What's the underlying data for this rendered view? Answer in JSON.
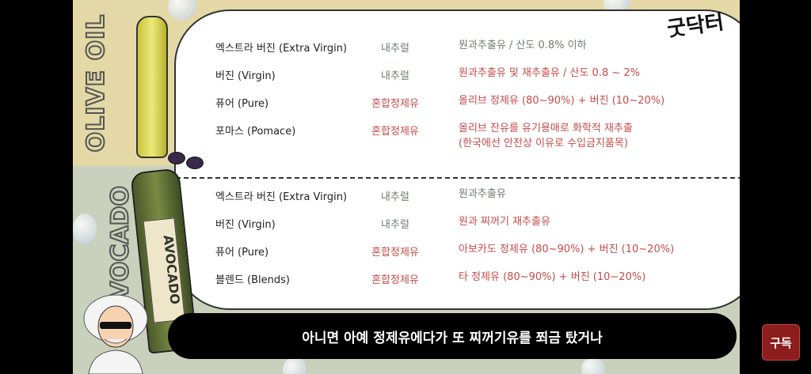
{
  "logo": "굿닥터",
  "side_titles": {
    "olive": "OLIVE OIL",
    "avocado": "AVOCADO"
  },
  "bottle_label": "AVOCADO",
  "olive_rows": [
    {
      "grade": "엑스트라 버진 (Extra Virgin)",
      "type": "내추럴",
      "desc": "원과추출유 / 산도 0.8% 이하",
      "desc2": ""
    },
    {
      "grade": "버진 (Virgin)",
      "type": "내추럴",
      "desc": "원과추출유 및 재추출유 / 산도 0.8 ~ 2%",
      "desc2": ""
    },
    {
      "grade": "퓨어 (Pure)",
      "type": "혼합정제유",
      "desc": "올리브 정제유 (80~90%) + 버진 (10~20%)",
      "desc2": ""
    },
    {
      "grade": "포마스 (Pomace)",
      "type": "혼합정제유",
      "desc": "올리브 잔유를 유기용매로 화학적 재추출",
      "desc2": "(한국에선 안전상 이유로 수입금지품목)"
    }
  ],
  "avocado_rows": [
    {
      "grade": "엑스트라 버진 (Extra Virgin)",
      "type": "내추럴",
      "desc": "원과추출유"
    },
    {
      "grade": "버진 (Virgin)",
      "type": "내추럴",
      "desc": "원과 찌꺼기 재추출유"
    },
    {
      "grade": "퓨어 (Pure)",
      "type": "혼합정제유",
      "desc": "아보카도 정제유 (80~90%) + 버진 (10~20%)"
    },
    {
      "grade": "블렌드 (Blends)",
      "type": "혼합정제유",
      "desc": "타 정제유 (80~90%) + 버진 (10~20%)"
    }
  ],
  "subtitle": "아니면 아예 정제유에다가 또 찌꺼기유를 쬐금 탔거나",
  "subscribe_label": "구독",
  "colors": {
    "top_bg": "#e4d9a6",
    "bottom_bg": "#c9d1bd",
    "natural": "#6f7a70",
    "refined": "#c84a4a",
    "subscribe": "#8c1d1d"
  }
}
